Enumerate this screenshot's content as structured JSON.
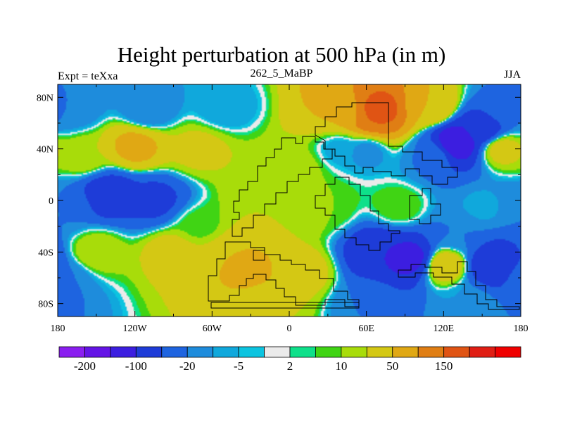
{
  "chart_data": {
    "type": "heatmap",
    "title": "Height perturbation at 500 hPa (in m)",
    "left_string": "Expt = teXxa",
    "center_string": "262_5_MaBP",
    "right_string": "JJA",
    "x_ticks": [
      "180",
      "120W",
      "60W",
      "0",
      "60E",
      "120E",
      "180"
    ],
    "x_tick_values": [
      -180,
      -120,
      -60,
      0,
      60,
      120,
      180
    ],
    "y_ticks": [
      "80N",
      "40N",
      "0",
      "40S",
      "80S"
    ],
    "y_tick_values": [
      80,
      40,
      0,
      -40,
      -80
    ],
    "xlim": [
      -180,
      180
    ],
    "ylim": [
      -90,
      90
    ],
    "colorbar": {
      "labels": [
        "-200",
        "-100",
        "-20",
        "-5",
        "2",
        "10",
        "50",
        "150"
      ],
      "colors": [
        "#8a1ef0",
        "#6414e6",
        "#3c1ee0",
        "#1e3cd8",
        "#1e64e0",
        "#1e8cdc",
        "#10a8dc",
        "#0cc4e0",
        "#ebebeb",
        "#0ee08a",
        "#40d414",
        "#a8dc0a",
        "#d4c814",
        "#e0a814",
        "#e07e14",
        "#e05414",
        "#e01e14",
        "#f00000"
      ]
    },
    "anomaly_regions": [
      {
        "lon": 65,
        "lat": 65,
        "value": 150
      },
      {
        "lon": 70,
        "lat": 70,
        "value": 170
      },
      {
        "lon": 40,
        "lat": 68,
        "value": 50
      },
      {
        "lon": 110,
        "lat": 72,
        "value": 50
      },
      {
        "lon": -170,
        "lat": 72,
        "value": -20
      },
      {
        "lon": -110,
        "lat": 70,
        "value": -20
      },
      {
        "lon": -50,
        "lat": 72,
        "value": -10
      },
      {
        "lon": 170,
        "lat": 72,
        "value": -20
      },
      {
        "lon": 130,
        "lat": 45,
        "value": -150
      },
      {
        "lon": 150,
        "lat": 55,
        "value": -80
      },
      {
        "lon": 110,
        "lat": 35,
        "value": -20
      },
      {
        "lon": 165,
        "lat": 40,
        "value": 30
      },
      {
        "lon": -120,
        "lat": 42,
        "value": 60
      },
      {
        "lon": -160,
        "lat": 35,
        "value": 20
      },
      {
        "lon": -70,
        "lat": 40,
        "value": 25
      },
      {
        "lon": 5,
        "lat": 25,
        "value": 15
      },
      {
        "lon": 60,
        "lat": 38,
        "value": -15
      },
      {
        "lon": 40,
        "lat": 40,
        "value": -8
      },
      {
        "lon": -140,
        "lat": 5,
        "value": -80
      },
      {
        "lon": -105,
        "lat": 0,
        "value": -60
      },
      {
        "lon": -175,
        "lat": -5,
        "value": -20
      },
      {
        "lon": -70,
        "lat": -20,
        "value": 8
      },
      {
        "lon": -20,
        "lat": 5,
        "value": 20
      },
      {
        "lon": 5,
        "lat": -10,
        "value": 20
      },
      {
        "lon": 30,
        "lat": -5,
        "value": 10
      },
      {
        "lon": 85,
        "lat": -5,
        "value": 10
      },
      {
        "lon": 150,
        "lat": -5,
        "value": -8
      },
      {
        "lon": -150,
        "lat": -40,
        "value": 20
      },
      {
        "lon": -90,
        "lat": -40,
        "value": 30
      },
      {
        "lon": -45,
        "lat": -45,
        "value": 50
      },
      {
        "lon": -30,
        "lat": -55,
        "value": 60
      },
      {
        "lon": 10,
        "lat": -55,
        "value": 30
      },
      {
        "lon": -15,
        "lat": -80,
        "value": 20
      },
      {
        "lon": 70,
        "lat": -40,
        "value": -100
      },
      {
        "lon": 95,
        "lat": -45,
        "value": -120
      },
      {
        "lon": 160,
        "lat": -50,
        "value": -100
      },
      {
        "lon": 130,
        "lat": -25,
        "value": -20
      },
      {
        "lon": 120,
        "lat": -50,
        "value": 40
      },
      {
        "lon": -175,
        "lat": -60,
        "value": -20
      },
      {
        "lon": 60,
        "lat": -80,
        "value": -20
      },
      {
        "lon": 140,
        "lat": -80,
        "value": -10
      }
    ]
  }
}
